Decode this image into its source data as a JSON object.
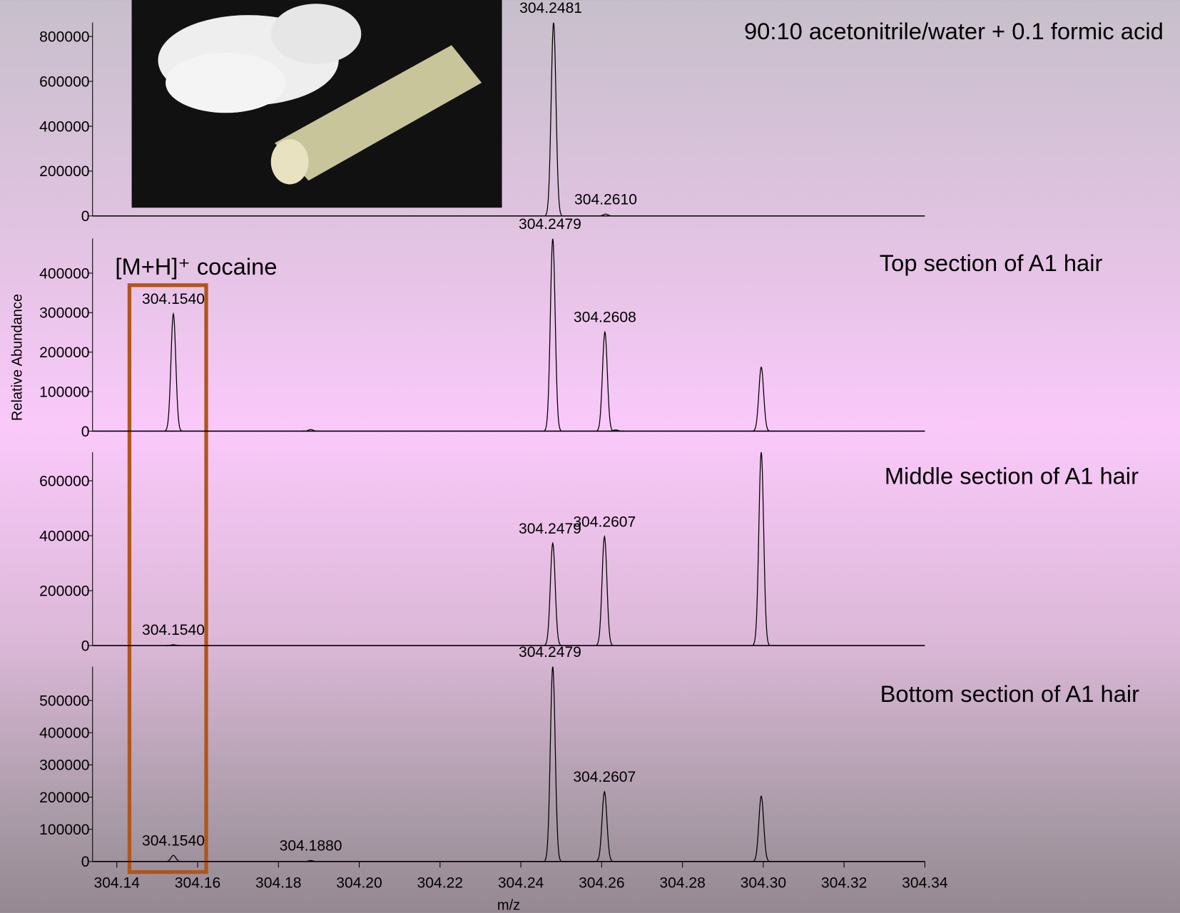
{
  "chart_data": [
    {
      "type": "spectrum",
      "annotations": [
        "90:10 acetonitrile/water + 0.1 formic acid"
      ],
      "x": [
        304.2481,
        304.261
      ],
      "values": [
        862000,
        8000
      ],
      "x_labels": [
        "304.2481",
        "304.2610"
      ],
      "xlim": [
        304.134,
        304.34
      ],
      "ylim": [
        0,
        862000
      ],
      "yticks": [
        0,
        200000,
        400000,
        600000,
        800000
      ],
      "color": "#000000"
    },
    {
      "type": "spectrum",
      "ylabel": "Relative Abundance",
      "annotations": [
        "Top section of A1 hair",
        "[M+H]⁺ cocaine"
      ],
      "x": [
        304.154,
        304.188,
        304.2479,
        304.2608,
        304.2635,
        304.2995
      ],
      "values": [
        297000,
        4000,
        487000,
        251000,
        3000,
        162000
      ],
      "x_labels": [
        "304.1540",
        null,
        "304.2479",
        "304.2608",
        null,
        null
      ],
      "xlim": [
        304.134,
        304.34
      ],
      "ylim": [
        0,
        487600
      ],
      "yticks": [
        0,
        100000,
        200000,
        300000,
        400000
      ],
      "color": "#000000"
    },
    {
      "type": "spectrum",
      "annotations": [
        "Middle section of A1 hair"
      ],
      "x": [
        304.154,
        304.2479,
        304.2607,
        304.2995
      ],
      "values": [
        3000,
        372600,
        397000,
        704000
      ],
      "x_labels": [
        "304.1540",
        "304.2479",
        "304.2607",
        null
      ],
      "xlim": [
        304.134,
        304.34
      ],
      "ylim": [
        0,
        704000
      ],
      "yticks": [
        0,
        200000,
        400000,
        600000
      ],
      "color": "#000000"
    },
    {
      "type": "spectrum",
      "annotations": [
        "Bottom section of A1 hair"
      ],
      "xlabel": "m/z",
      "x": [
        304.154,
        304.188,
        304.2479,
        304.2607,
        304.2995
      ],
      "values": [
        19000,
        3000,
        605000,
        217000,
        203000
      ],
      "x_labels": [
        "304.1540",
        "304.1880",
        "304.2479",
        "304.2607",
        null
      ],
      "xlim": [
        304.134,
        304.34
      ],
      "ylim": [
        0,
        605000
      ],
      "yticks": [
        0,
        100000,
        200000,
        300000,
        400000,
        500000
      ],
      "xticks": [
        304.14,
        304.16,
        304.18,
        {
          "value": 304.2,
          "label": "304.20"
        },
        304.22,
        304.24,
        304.26,
        304.28,
        {
          "value": 304.3,
          "label": "304.30"
        },
        304.32,
        304.34
      ],
      "color": "#000000"
    }
  ]
}
